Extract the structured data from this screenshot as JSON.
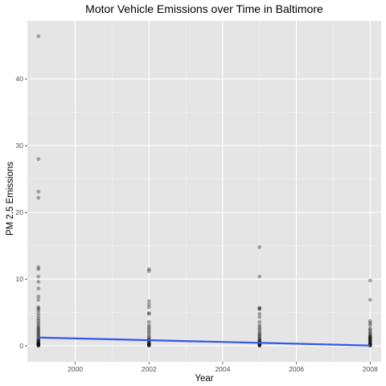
{
  "chart_data": {
    "type": "scatter",
    "title": "Motor Vehicle Emissions over Time in Baltimore",
    "xlabel": "Year",
    "ylabel": "PM 2.5 Emissions",
    "xlim": [
      1998.7,
      2008.3
    ],
    "ylim": [
      -2.4,
      48.7
    ],
    "x_ticks": [
      2000,
      2002,
      2004,
      2006,
      2008
    ],
    "x_tick_labels": [
      "2000",
      "2002",
      "2004",
      "2006",
      "2008"
    ],
    "y_ticks": [
      0,
      10,
      20,
      30,
      40
    ],
    "y_tick_labels": [
      "0",
      "10",
      "20",
      "30",
      "40"
    ],
    "grid": true,
    "background": "#e5e5e5",
    "points": {
      "color": "#000000",
      "opacity": 0.3,
      "series": [
        {
          "x": 1999,
          "values": [
            46.4,
            28.0,
            23.1,
            22.2,
            11.8,
            11.5,
            10.4,
            9.6,
            8.6,
            7.4,
            6.9,
            5.8,
            5.6,
            5.3,
            4.9,
            4.5,
            4.1,
            3.8,
            3.5,
            3.2,
            2.9,
            2.7,
            2.5,
            2.3,
            2.1,
            1.9,
            1.7,
            1.5,
            1.3,
            1.1,
            0.9,
            0.8,
            0.7,
            0.6,
            0.5,
            0.4,
            0.3,
            0.25,
            0.2,
            0.15,
            0.1,
            0.05,
            0.02
          ]
        },
        {
          "x": 2002,
          "values": [
            11.5,
            11.2,
            6.7,
            6.2,
            5.8,
            4.9,
            4.8,
            3.6,
            3.1,
            2.8,
            2.5,
            2.2,
            1.9,
            1.6,
            1.3,
            1.1,
            0.9,
            0.8,
            0.6,
            0.5,
            0.4,
            0.3,
            0.2,
            0.15,
            0.1,
            0.05,
            0.02
          ]
        },
        {
          "x": 2005,
          "values": [
            14.8,
            10.4,
            5.7,
            5.6,
            5.5,
            4.8,
            4.3,
            3.6,
            3.1,
            2.8,
            2.5,
            2.2,
            1.9,
            1.7,
            1.5,
            1.3,
            1.1,
            0.9,
            0.8,
            0.7,
            0.6,
            0.5,
            0.4,
            0.3,
            0.2,
            0.15,
            0.1,
            0.05,
            0.02
          ]
        },
        {
          "x": 2008,
          "values": [
            9.8,
            6.9,
            3.7,
            3.4,
            3.1,
            2.6,
            2.4,
            2.1,
            1.9,
            1.7,
            1.5,
            1.4,
            1.3,
            1.2,
            1.1,
            1.0,
            0.9,
            0.8,
            0.7,
            0.6,
            0.5,
            0.4,
            0.3,
            0.2,
            0.15,
            0.1,
            0.05,
            0.02
          ]
        }
      ]
    },
    "trend_line": {
      "color": "#3355ee",
      "x": [
        1999,
        2008
      ],
      "y": [
        1.25,
        0.05
      ]
    }
  }
}
